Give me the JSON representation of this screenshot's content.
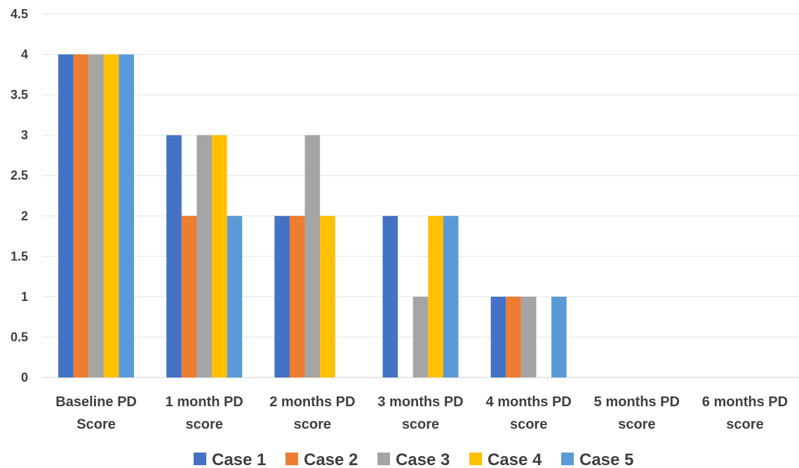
{
  "chart_data": {
    "type": "bar",
    "title": "",
    "xlabel": "",
    "ylabel": "",
    "categories": [
      [
        "Baseline PD",
        "Score"
      ],
      [
        "1 month PD",
        "score"
      ],
      [
        "2 months PD",
        "score"
      ],
      [
        "3 months PD",
        "score"
      ],
      [
        "4 months PD",
        "score"
      ],
      [
        "5 months PD",
        "score"
      ],
      [
        "6 months PD",
        "score"
      ]
    ],
    "series": [
      {
        "name": "Case 1",
        "color": "#4472C4",
        "values": [
          4,
          3,
          2,
          2,
          1,
          0,
          0
        ]
      },
      {
        "name": "Case 2",
        "color": "#ED7D31",
        "values": [
          4,
          2,
          2,
          0,
          1,
          0,
          0
        ]
      },
      {
        "name": "Case 3",
        "color": "#A5A5A5",
        "values": [
          4,
          3,
          3,
          1,
          1,
          0,
          0
        ]
      },
      {
        "name": "Case 4",
        "color": "#FFC000",
        "values": [
          4,
          3,
          2,
          2,
          0,
          0,
          0
        ]
      },
      {
        "name": "Case 5",
        "color": "#5B9BD5",
        "values": [
          4,
          2,
          0,
          2,
          1,
          0,
          0
        ]
      }
    ],
    "ylim": [
      0,
      4.5
    ],
    "yticks": [
      "0",
      "0.5",
      "1",
      "1.5",
      "2",
      "2.5",
      "3",
      "3.5",
      "4",
      "4.5"
    ],
    "grid": true,
    "legend_position": "bottom"
  }
}
